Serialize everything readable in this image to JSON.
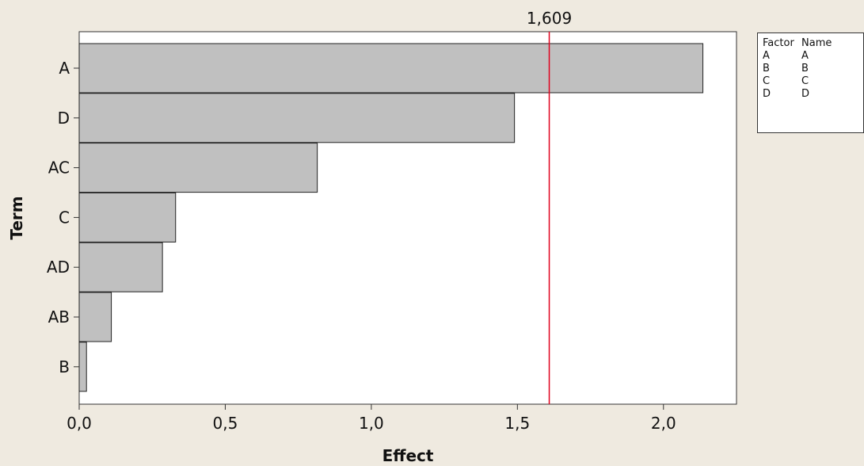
{
  "chart_data": {
    "type": "bar",
    "orientation": "horizontal",
    "title": "",
    "xlabel": "Effect",
    "ylabel": "Term",
    "categories": [
      "A",
      "D",
      "AC",
      "C",
      "AD",
      "AB",
      "B"
    ],
    "values": [
      2.135,
      1.49,
      0.815,
      0.33,
      0.285,
      0.11,
      0.025
    ],
    "xlim": [
      0,
      2.25
    ],
    "xticks": [
      0.0,
      0.5,
      1.0,
      1.5,
      2.0
    ],
    "xtick_labels": [
      "0,0",
      "0,5",
      "1,0",
      "1,5",
      "2,0"
    ],
    "reference_line": {
      "value": 1.609,
      "label": "1,609",
      "color": "#e0001b"
    },
    "bar_color": "#c0c0c0",
    "grid": false,
    "legend_placement": "right"
  },
  "legend": {
    "header": {
      "factor": "Factor",
      "name": "Name"
    },
    "rows": [
      {
        "factor": "A",
        "name": "A"
      },
      {
        "factor": "B",
        "name": "B"
      },
      {
        "factor": "C",
        "name": "C"
      },
      {
        "factor": "D",
        "name": "D"
      }
    ]
  }
}
